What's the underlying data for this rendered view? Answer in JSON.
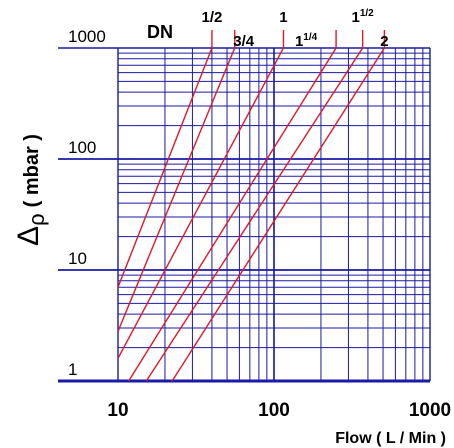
{
  "chart_data": {
    "type": "line",
    "title": "DN",
    "xlabel": "Flow ( L / Min )",
    "ylabel_main": "Δρ",
    "ylabel_unit": "( mbar )",
    "xscale": "log",
    "yscale": "log",
    "xlim": [
      10,
      1000
    ],
    "ylim": [
      1,
      1000
    ],
    "x_tick_labels": [
      "10",
      "100",
      "1000"
    ],
    "y_tick_labels": [
      "1",
      "10",
      "100",
      "1000"
    ],
    "grid": true,
    "colors": {
      "grid": "#1a1aa6",
      "line": "#e01828",
      "text": "#000000"
    },
    "series": [
      {
        "name": "1/2",
        "x": [
          10,
          40
        ],
        "y": [
          7,
          1000
        ]
      },
      {
        "name": "3/4",
        "x": [
          10,
          56
        ],
        "y": [
          2.8,
          1000
        ]
      },
      {
        "name": "1",
        "x": [
          10,
          115
        ],
        "y": [
          1.6,
          1000
        ]
      },
      {
        "name": "1 1/4",
        "x": [
          10,
          250
        ],
        "y": [
          0.7,
          1000
        ]
      },
      {
        "name": "1 1/2",
        "x": [
          12,
          370
        ],
        "y": [
          0.6,
          1000
        ]
      },
      {
        "name": "2",
        "x": [
          14,
          510
        ],
        "y": [
          0.36,
          1000
        ]
      }
    ],
    "series_labels": [
      {
        "base": "1/2",
        "sup": ""
      },
      {
        "base": "3/4",
        "sup": ""
      },
      {
        "base": "1",
        "sup": ""
      },
      {
        "base": "1",
        "sup": "1/4"
      },
      {
        "base": "1",
        "sup": "1/2"
      },
      {
        "base": "2",
        "sup": ""
      }
    ]
  }
}
